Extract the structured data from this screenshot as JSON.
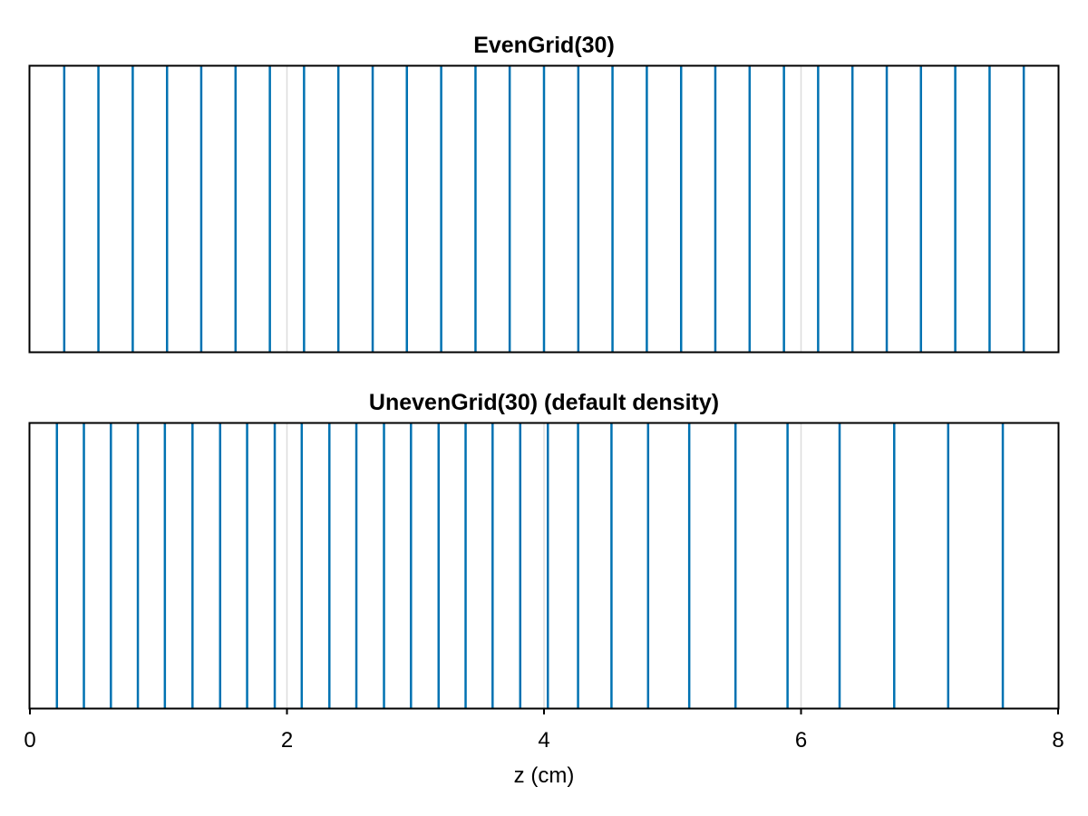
{
  "colors": {
    "series": "#0072b2",
    "grid": "#dddddd",
    "frame": "#000000"
  },
  "chart_data": [
    {
      "type": "line",
      "title": "EvenGrid(30)",
      "xlabel": "",
      "ylabel": "",
      "xlim": [
        0,
        8
      ],
      "grid": true,
      "legend": "none",
      "x": [
        0.267,
        0.533,
        0.8,
        1.067,
        1.333,
        1.6,
        1.867,
        2.133,
        2.4,
        2.667,
        2.933,
        3.2,
        3.467,
        3.733,
        4.0,
        4.267,
        4.533,
        4.8,
        5.067,
        5.333,
        5.6,
        5.867,
        6.133,
        6.4,
        6.667,
        6.933,
        7.2,
        7.467,
        7.733
      ]
    },
    {
      "type": "line",
      "title": "UnevenGrid(30) (default density)",
      "xlabel": "z (cm)",
      "ylabel": "",
      "xlim": [
        0,
        8
      ],
      "grid": true,
      "legend": "none",
      "xticks": [
        "0",
        "2",
        "4",
        "6",
        "8"
      ],
      "x": [
        0.21,
        0.42,
        0.63,
        0.84,
        1.05,
        1.265,
        1.48,
        1.69,
        1.905,
        2.115,
        2.33,
        2.54,
        2.755,
        2.965,
        3.18,
        3.39,
        3.6,
        3.815,
        4.03,
        4.265,
        4.525,
        4.81,
        5.13,
        5.49,
        5.895,
        6.3,
        6.725,
        7.145,
        7.57
      ]
    }
  ]
}
